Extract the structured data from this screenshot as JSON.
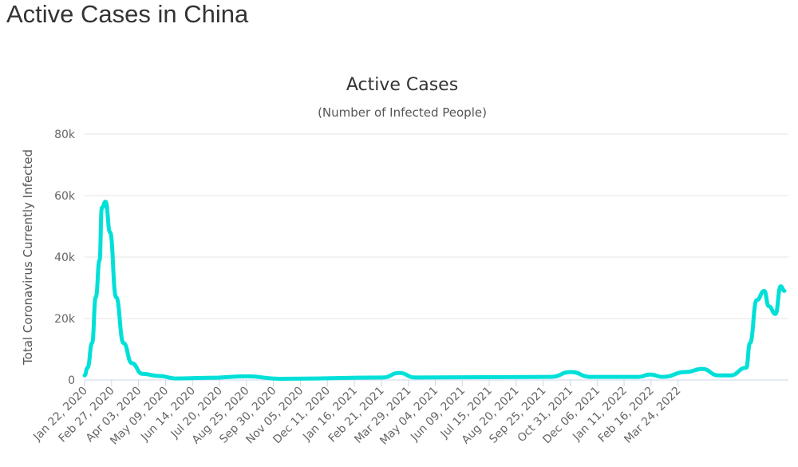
{
  "page_title": "Active Cases in China",
  "chart_data": {
    "type": "line",
    "title": "Active Cases",
    "subtitle": "(Number of Infected People)",
    "ylabel": "Total Coronavirus Currently Infected",
    "xlabel": "",
    "ylim": [
      0,
      80000
    ],
    "yticks": [
      0,
      20000,
      40000,
      60000,
      80000
    ],
    "ytick_labels": [
      "0",
      "20k",
      "40k",
      "60k",
      "80k"
    ],
    "x_units": "days since Jan 22, 2020",
    "xtick_step_days": 36,
    "xtick_labels": [
      "Jan 22, 2020",
      "Feb 27, 2020",
      "Apr 03, 2020",
      "May 09, 2020",
      "Jun 14, 2020",
      "Jul 20, 2020",
      "Aug 25, 2020",
      "Sep 30, 2020",
      "Nov 05, 2020",
      "Dec 11, 2020",
      "Jan 16, 2021",
      "Feb 21, 2021",
      "Mar 29, 2021",
      "May 04, 2021",
      "Jun 09, 2021",
      "Jul 15, 2021",
      "Aug 20, 2021",
      "Sep 25, 2021",
      "Oct 31, 2021",
      "Dec 06, 2021",
      "Jan 11, 2022",
      "Feb 16, 2022",
      "Mar 24, 2022"
    ],
    "grid": true,
    "series": [
      {
        "name": "Active Cases",
        "color": "#00e0d8",
        "x": [
          0,
          4,
          10,
          15,
          20,
          23,
          28,
          34,
          42,
          52,
          63,
          77,
          100,
          121,
          164,
          217,
          260,
          398,
          420,
          441,
          622,
          649,
          675,
          739,
          755,
          771,
          803,
          824,
          846,
          862,
          883,
          888,
          897,
          907,
          913,
          922,
          929,
          934
        ],
        "y": [
          1500,
          4000,
          12000,
          27000,
          39000,
          56000,
          58000,
          48000,
          27000,
          12000,
          5500,
          2000,
          1300,
          500,
          700,
          1200,
          400,
          800,
          2300,
          800,
          1000,
          2600,
          1000,
          1000,
          1800,
          1000,
          2600,
          3600,
          1500,
          1500,
          4000,
          12000,
          26000,
          29000,
          24000,
          21500,
          30500,
          29000
        ]
      }
    ]
  }
}
